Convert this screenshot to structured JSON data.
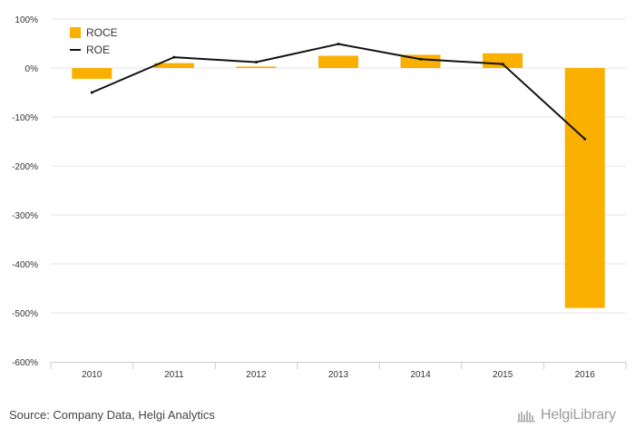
{
  "chart_data": {
    "type": "bar",
    "categories": [
      "2010",
      "2011",
      "2012",
      "2013",
      "2014",
      "2015",
      "2016"
    ],
    "series": [
      {
        "name": "ROCE",
        "kind": "bar",
        "color": "#f9b000",
        "values": [
          -22,
          10,
          3,
          25,
          27,
          30,
          -490
        ]
      },
      {
        "name": "ROE",
        "kind": "line",
        "color": "#111111",
        "values": [
          -50,
          22,
          12,
          49,
          18,
          8,
          -145
        ]
      }
    ],
    "y_ticks": [
      "100%",
      "0%",
      "-100%",
      "-200%",
      "-300%",
      "-400%",
      "-500%",
      "-600%"
    ],
    "y_tick_values": [
      100,
      0,
      -100,
      -200,
      -300,
      -400,
      -500,
      -600
    ],
    "ylim": [
      -600,
      100
    ],
    "grid": true,
    "legend_position": "top-left",
    "title": "",
    "xlabel": "",
    "ylabel": ""
  },
  "footer": {
    "source": "Source: Company Data, Helgi Analytics",
    "logo_text": "HelgiLibrary"
  }
}
